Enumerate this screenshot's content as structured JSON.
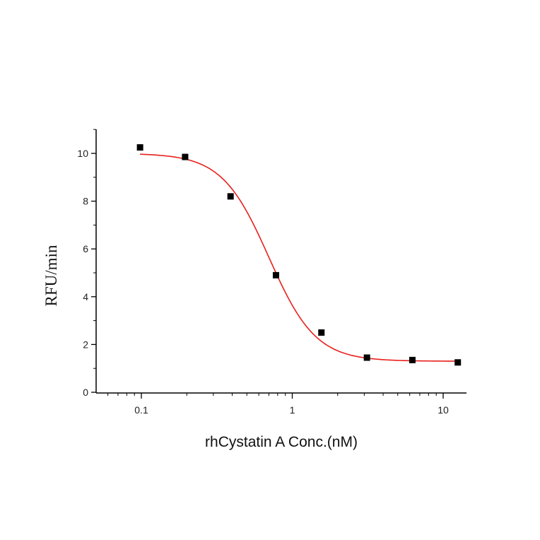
{
  "chart_data": {
    "type": "scatter",
    "title": "",
    "xlabel": "rhCystatin A Conc.(nM)",
    "ylabel": "RFU/min",
    "x_scale": "log",
    "xlim": [
      0.05,
      15
    ],
    "ylim": [
      0,
      11
    ],
    "x_ticks": [
      {
        "value": 0.1,
        "label": "0.1"
      },
      {
        "value": 1,
        "label": "1"
      },
      {
        "value": 10,
        "label": "10"
      }
    ],
    "y_ticks": [
      {
        "value": 0,
        "label": "0"
      },
      {
        "value": 2,
        "label": "2"
      },
      {
        "value": 4,
        "label": "4"
      },
      {
        "value": 6,
        "label": "6"
      },
      {
        "value": 8,
        "label": "8"
      },
      {
        "value": 10,
        "label": "10"
      }
    ],
    "grid": false,
    "legend": "none",
    "series": [
      {
        "marker": "square",
        "color": "#000000",
        "points": [
          {
            "x": 0.098,
            "y": 10.25
          },
          {
            "x": 0.195,
            "y": 9.85
          },
          {
            "x": 0.39,
            "y": 8.2
          },
          {
            "x": 0.78,
            "y": 4.9
          },
          {
            "x": 1.56,
            "y": 2.5
          },
          {
            "x": 3.125,
            "y": 1.45
          },
          {
            "x": 6.25,
            "y": 1.35
          },
          {
            "x": 12.5,
            "y": 1.25
          }
        ]
      }
    ],
    "fit": {
      "type": "four-parameter-logistic",
      "color": "#e8201c",
      "top": 10.0,
      "bottom": 1.3,
      "ec50": 0.7,
      "hill": 2.8,
      "x_range": [
        0.098,
        12.5
      ]
    }
  }
}
